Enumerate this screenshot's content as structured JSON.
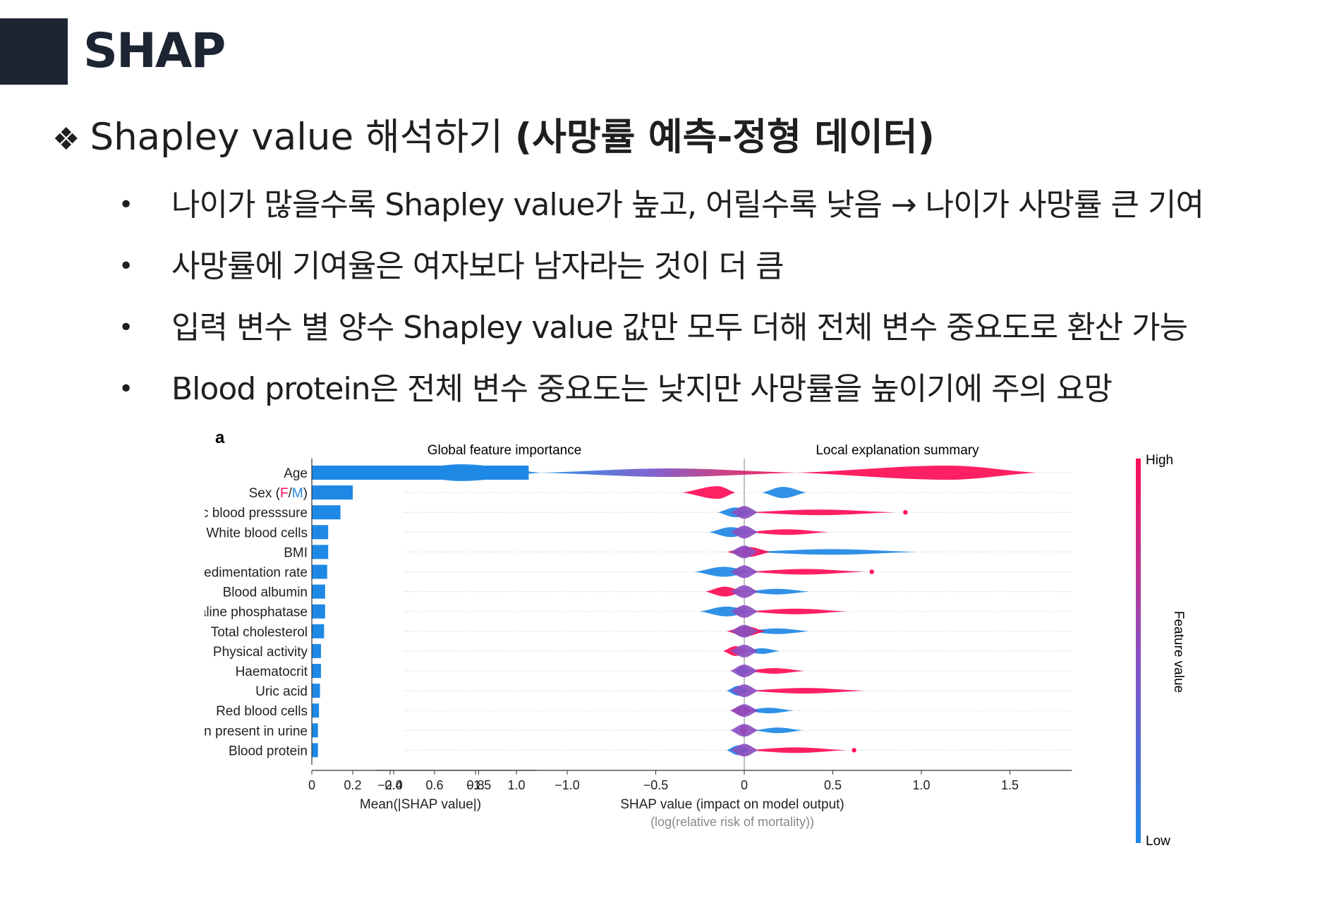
{
  "header": {
    "title": "SHAP"
  },
  "subtitle": {
    "marker": "❖",
    "normal": "Shapley value 해석하기",
    "bold": "(사망률 예측-정형 데이터)"
  },
  "bullets": [
    "나이가 많을수록 Shapley value가 높고, 어릴수록 낮음 → 나이가 사망률 큰 기여",
    "사망률에 기여율은 여자보다 남자라는 것이 더 큼",
    "입력 변수 별 양수 Shapley value 값만 모두 더해 전체 변수 중요도로 환산 가능",
    "Blood protein은 전체 변수 중요도는 낮지만 사망률을 높이기에 주의 요망"
  ],
  "chart_data": [
    {
      "type": "bar",
      "orientation": "horizontal",
      "panel_label": "a",
      "title": "Global feature importance",
      "xlabel": "Mean(|SHAP value|)",
      "xlim": [
        0,
        1.1
      ],
      "xticks": [
        0,
        0.2,
        0.4,
        0.6,
        0.8,
        1.0
      ],
      "xtick_labels": [
        "0",
        "0.2",
        "0.4",
        "0.6",
        "0.8",
        "1.0"
      ],
      "categories": [
        "Age",
        "Sex (F/M)",
        "Systolic blood presssure",
        "White blood cells",
        "BMI",
        "Sedimentation rate",
        "Blood albumin",
        "Alkaline phosphatase",
        "Total cholesterol",
        "Physical activity",
        "Haematocrit",
        "Uric acid",
        "Red blood cells",
        "Albumin present in urine",
        "Blood protein"
      ],
      "sex_label_parts": [
        "Sex (",
        "F",
        "/",
        "M",
        ")"
      ],
      "values": [
        1.06,
        0.2,
        0.14,
        0.08,
        0.08,
        0.075,
        0.065,
        0.065,
        0.06,
        0.045,
        0.045,
        0.04,
        0.035,
        0.03,
        0.03
      ],
      "bar_color": "#1e88e5",
      "sex_colors": {
        "F": "#ff0d57",
        "M": "#1e88e5"
      }
    },
    {
      "type": "scatter",
      "subtype": "beeswarm",
      "title": "Local explanation summary",
      "xlabel": "SHAP value (impact on model output)",
      "xlabel2": "(log(relative risk of mortality))",
      "xlim": [
        -2.0,
        1.85
      ],
      "xticks": [
        -2.0,
        -1.5,
        -1.0,
        -0.5,
        0,
        0.5,
        1.0,
        1.5
      ],
      "xtick_labels": [
        "−2.0",
        "−1.5",
        "−1.0",
        "−0.5",
        "0",
        "0.5",
        "1.0",
        "1.5"
      ],
      "colorbar": {
        "label": "Feature value",
        "high": "High",
        "low": "Low",
        "high_color": "#ff0d57",
        "low_color": "#1e88e5"
      },
      "rows": [
        {
          "feature": "Age",
          "low": {
            "min": -1.95,
            "max": -1.15,
            "center": -1.6
          },
          "mid": {
            "min": -1.15,
            "max": 0.3
          },
          "high": {
            "min": 0.3,
            "max": 1.65,
            "center": 1.15
          }
        },
        {
          "feature": "Sex (F/M)",
          "low": {
            "min": 0.1,
            "max": 0.35,
            "center": 0.22
          },
          "high": {
            "min": -0.35,
            "max": -0.05,
            "center": -0.15
          }
        },
        {
          "feature": "Systolic blood presssure",
          "low": {
            "min": -0.15,
            "max": 0.05
          },
          "high": {
            "min": 0.0,
            "max": 0.85
          },
          "outliers": [
            0.91
          ]
        },
        {
          "feature": "White blood cells",
          "low": {
            "min": -0.2,
            "max": 0.05
          },
          "high": {
            "min": 0.0,
            "max": 0.48
          }
        },
        {
          "feature": "BMI",
          "low": {
            "min": 0.0,
            "max": 0.98
          },
          "high": {
            "min": -0.1,
            "max": 0.15
          }
        },
        {
          "feature": "Sedimentation rate",
          "low": {
            "min": -0.28,
            "max": 0.05
          },
          "high": {
            "min": 0.0,
            "max": 0.68
          },
          "outliers": [
            0.72
          ]
        },
        {
          "feature": "Blood albumin",
          "low": {
            "min": 0.0,
            "max": 0.37
          },
          "high": {
            "min": -0.22,
            "max": 0.0
          }
        },
        {
          "feature": "Alkaline phosphatase",
          "low": {
            "min": -0.25,
            "max": 0.05
          },
          "high": {
            "min": 0.0,
            "max": 0.58
          }
        },
        {
          "feature": "Total cholesterol",
          "low": {
            "min": 0.0,
            "max": 0.37
          },
          "high": {
            "min": -0.1,
            "max": 0.12
          }
        },
        {
          "feature": "Physical activity",
          "low": {
            "min": 0.0,
            "max": 0.2
          },
          "high": {
            "min": -0.12,
            "max": 0.02
          }
        },
        {
          "feature": "Haematocrit",
          "low": {
            "min": -0.05,
            "max": 0.03
          },
          "high": {
            "min": 0.0,
            "max": 0.34
          }
        },
        {
          "feature": "Uric acid",
          "low": {
            "min": -0.1,
            "max": 0.03
          },
          "high": {
            "min": 0.0,
            "max": 0.68
          }
        },
        {
          "feature": "Red blood cells",
          "low": {
            "min": 0.0,
            "max": 0.28
          },
          "high": {
            "min": -0.08,
            "max": 0.05
          }
        },
        {
          "feature": "Albumin present in urine",
          "low": {
            "min": 0.05,
            "max": 0.33
          },
          "high": {
            "min": -0.03,
            "max": 0.02
          }
        },
        {
          "feature": "Blood protein",
          "low": {
            "min": -0.1,
            "max": 0.03
          },
          "high": {
            "min": 0.0,
            "max": 0.58
          },
          "outliers": [
            0.62
          ]
        }
      ]
    }
  ]
}
